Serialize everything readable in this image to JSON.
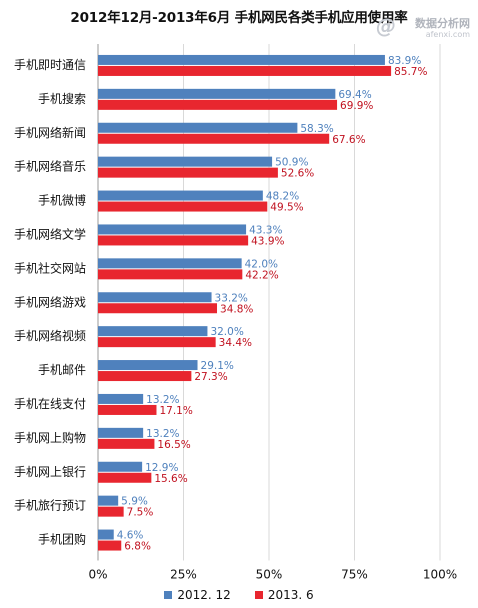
{
  "chart_data": {
    "type": "bar",
    "orientation": "horizontal",
    "title": "2012年12月-2013年6月 手机网民各类手机应用使用率",
    "categories": [
      "手机即时通信",
      "手机搜索",
      "手机网络新闻",
      "手机网络音乐",
      "手机微博",
      "手机网络文学",
      "手机社交网站",
      "手机网络游戏",
      "手机网络视频",
      "手机邮件",
      "手机在线支付",
      "手机网上购物",
      "手机网上银行",
      "手机旅行预订",
      "手机团购"
    ],
    "series": [
      {
        "name": "2012. 12",
        "color": "#4f81bd",
        "values": [
          83.9,
          69.4,
          58.3,
          50.9,
          48.2,
          43.3,
          42.0,
          33.2,
          32.0,
          29.1,
          13.2,
          13.2,
          12.9,
          5.9,
          4.6
        ],
        "labels": [
          "83.9%",
          "69.4%",
          "58.3%",
          "50.9%",
          "48.2%",
          "43.3%",
          "42.0%",
          "33.2%",
          "32.0%",
          "29.1%",
          "13.2%",
          "13.2%",
          "12.9%",
          "5.9%",
          "4.6%"
        ]
      },
      {
        "name": "2013. 6",
        "color": "#e8262f",
        "values": [
          85.7,
          69.9,
          67.6,
          52.6,
          49.5,
          43.9,
          42.2,
          34.8,
          34.4,
          27.3,
          17.1,
          16.5,
          15.6,
          7.5,
          6.8
        ],
        "labels": [
          "85.7%",
          "69.9%",
          "67.6%",
          "52.6%",
          "49.5%",
          "43.9%",
          "42.2%",
          "34.8%",
          "34.4%",
          "27.3%",
          "17.1%",
          "16.5%",
          "15.6%",
          "7.5%",
          "6.8%"
        ]
      }
    ],
    "xlim": [
      0,
      100
    ],
    "ticks": [
      0,
      25,
      50,
      75,
      100
    ],
    "tick_labels": [
      "0%",
      "25%",
      "50%",
      "75%",
      "100%"
    ],
    "grid": "vertical",
    "legend_position": "bottom"
  },
  "watermark": {
    "main": "数据分析网",
    "sub": "afenxi.com",
    "icon": "@"
  }
}
